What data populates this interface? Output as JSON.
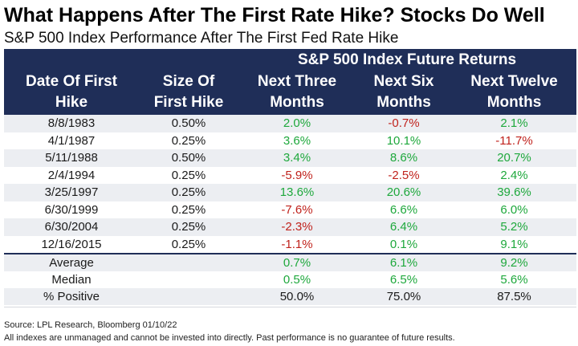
{
  "title": "What Happens After The First Rate Hike? Stocks Do Well",
  "subtitle": "S&P 500 Index Performance After The First Fed Rate Hike",
  "header": {
    "group_label": "S&P 500 Index Future Returns",
    "col1": [
      "Date Of First",
      "Hike"
    ],
    "col2": [
      "Size Of",
      "First Hike"
    ],
    "col3": [
      "Next Three",
      "Months"
    ],
    "col4": [
      "Next Six",
      "Months"
    ],
    "col5": [
      "Next Twelve",
      "Months"
    ]
  },
  "colors": {
    "header_bg": "#1f2e58",
    "positive": "#1ea83c",
    "negative": "#c0221c",
    "row_shade": "#eceef2"
  },
  "chart_data": {
    "type": "table",
    "columns": [
      "Date Of First Hike",
      "Size Of First Hike",
      "Next Three Months",
      "Next Six Months",
      "Next Twelve Months"
    ],
    "rows": [
      {
        "date": "8/8/1983",
        "size": "0.50%",
        "m3": "2.0%",
        "m6": "-0.7%",
        "m12": "2.1%"
      },
      {
        "date": "4/1/1987",
        "size": "0.25%",
        "m3": "3.6%",
        "m6": "10.1%",
        "m12": "-11.7%"
      },
      {
        "date": "5/11/1988",
        "size": "0.50%",
        "m3": "3.4%",
        "m6": "8.6%",
        "m12": "20.7%"
      },
      {
        "date": "2/4/1994",
        "size": "0.25%",
        "m3": "-5.9%",
        "m6": "-2.5%",
        "m12": "2.4%"
      },
      {
        "date": "3/25/1997",
        "size": "0.25%",
        "m3": "13.6%",
        "m6": "20.6%",
        "m12": "39.6%"
      },
      {
        "date": "6/30/1999",
        "size": "0.25%",
        "m3": "-7.6%",
        "m6": "6.6%",
        "m12": "6.0%"
      },
      {
        "date": "6/30/2004",
        "size": "0.25%",
        "m3": "-2.3%",
        "m6": "6.4%",
        "m12": "5.2%"
      },
      {
        "date": "12/16/2015",
        "size": "0.25%",
        "m3": "-1.1%",
        "m6": "0.1%",
        "m12": "9.1%"
      }
    ],
    "summary": [
      {
        "label": "Average",
        "m3": "0.7%",
        "m6": "6.1%",
        "m12": "9.2%"
      },
      {
        "label": "Median",
        "m3": "0.5%",
        "m6": "6.5%",
        "m12": "5.6%"
      },
      {
        "label": "% Positive",
        "m3": "50.0%",
        "m6": "75.0%",
        "m12": "87.5%"
      }
    ]
  },
  "footer": {
    "source": "Source: LPL Research, Bloomberg 01/10/22",
    "disclaimer": "All indexes are unmanaged and cannot be invested into directly. Past performance is no guarantee of future results."
  }
}
